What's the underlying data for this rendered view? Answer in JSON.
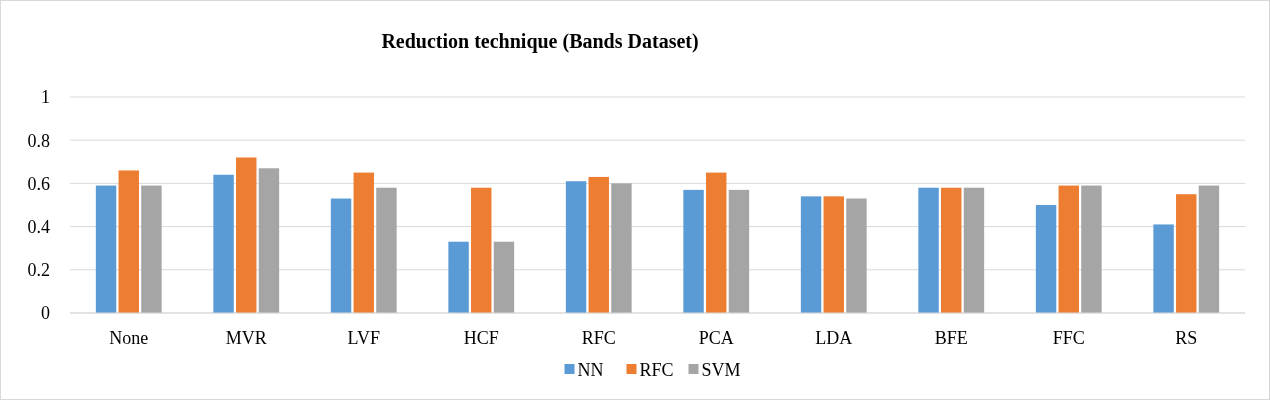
{
  "chart_data": {
    "type": "bar",
    "title": "Reduction technique (Bands Dataset)",
    "categories": [
      "None",
      "MVR",
      "LVF",
      "HCF",
      "RFC",
      "PCA",
      "LDA",
      "BFE",
      "FFC",
      "RS"
    ],
    "series": [
      {
        "name": "NN",
        "color": "#5b9bd5",
        "values": [
          0.59,
          0.64,
          0.53,
          0.33,
          0.61,
          0.57,
          0.54,
          0.58,
          0.5,
          0.41
        ]
      },
      {
        "name": "RFC",
        "color": "#ed7d31",
        "values": [
          0.66,
          0.72,
          0.65,
          0.58,
          0.63,
          0.65,
          0.54,
          0.58,
          0.59,
          0.55
        ]
      },
      {
        "name": "SVM",
        "color": "#a5a5a5",
        "values": [
          0.59,
          0.67,
          0.58,
          0.33,
          0.6,
          0.57,
          0.53,
          0.58,
          0.59,
          0.59
        ]
      }
    ],
    "ylim": [
      0,
      1
    ],
    "yticks": [
      0,
      0.2,
      0.4,
      0.6,
      0.8,
      1
    ],
    "grid": "y",
    "legend": "bottom"
  }
}
